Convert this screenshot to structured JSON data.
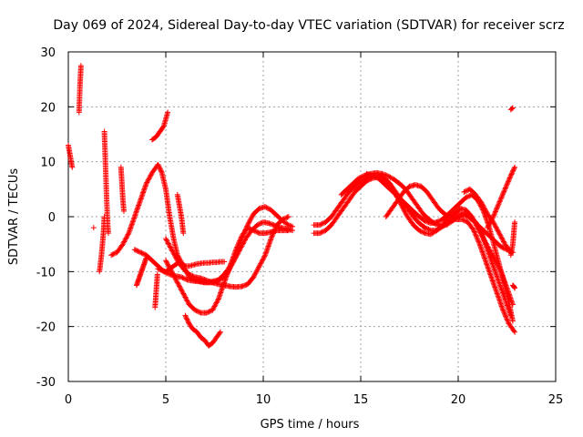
{
  "chart_data": {
    "type": "scatter",
    "title": "Day 069 of 2024, Sidereal Day-to-day VTEC variation (SDTVAR) for receiver scrz",
    "xlabel": "GPS time / hours",
    "ylabel": "SDTVAR / TECUs",
    "xlim": [
      0,
      25
    ],
    "ylim": [
      -30,
      30
    ],
    "xticks": [
      0,
      5,
      10,
      15,
      20,
      25
    ],
    "yticks": [
      -30,
      -20,
      -10,
      0,
      10,
      20,
      30
    ],
    "xtick_labels": [
      "0",
      "5",
      "10",
      "15",
      "20",
      "25"
    ],
    "ytick_labels": [
      "-30",
      "-20",
      "-10",
      "0",
      "10",
      "20",
      "30"
    ],
    "grid": true,
    "marker": "+",
    "color": "#ff0000",
    "series": [
      {
        "name": "s1",
        "x": [
          0.0,
          0.1,
          0.2
        ],
        "y": [
          13,
          11,
          9
        ]
      },
      {
        "name": "s2",
        "x": [
          0.55,
          0.6,
          0.65
        ],
        "y": [
          19,
          24,
          27.5
        ]
      },
      {
        "name": "s3",
        "x": [
          1.3
        ],
        "y": [
          -2
        ]
      },
      {
        "name": "s4",
        "x": [
          1.6,
          1.7,
          1.8,
          1.85
        ],
        "y": [
          -10,
          -7,
          -3,
          0
        ]
      },
      {
        "name": "s5",
        "x": [
          1.85,
          1.9,
          1.95,
          2.0,
          2.05
        ],
        "y": [
          15.5,
          10,
          5,
          0,
          -3
        ]
      },
      {
        "name": "s6",
        "x": [
          2.7,
          2.75,
          2.8,
          2.85
        ],
        "y": [
          9,
          6,
          3,
          1
        ]
      },
      {
        "name": "s7",
        "x": [
          2.2,
          2.5,
          2.8,
          3.1,
          3.4,
          3.7,
          4.0,
          4.3,
          4.6,
          4.8,
          5.0,
          5.2,
          5.4,
          5.6,
          5.9,
          6.2,
          6.5,
          6.8,
          7.1,
          7.4,
          7.7,
          8.0,
          8.3,
          8.6,
          8.9,
          9.2,
          9.5,
          9.8,
          10.1,
          10.4,
          10.7,
          11.0,
          11.3,
          11.5
        ],
        "y": [
          -7,
          -6.5,
          -5,
          -3,
          0,
          3,
          6,
          8,
          9.5,
          8,
          5,
          0,
          -4,
          -7,
          -9,
          -11,
          -11.5,
          -11.8,
          -11.9,
          -11.8,
          -11.5,
          -10.5,
          -9,
          -7,
          -4,
          -1.5,
          0.5,
          1.5,
          1.8,
          1.2,
          0.2,
          -0.8,
          -1.5,
          -1.8
        ]
      },
      {
        "name": "s8",
        "x": [
          3.4,
          3.7,
          4.0,
          4.3,
          4.6,
          4.9,
          5.2,
          5.5,
          5.8,
          6.1,
          6.4,
          6.7,
          7.0,
          7.3,
          7.6,
          7.9,
          8.2,
          8.5,
          8.8,
          9.1,
          9.4,
          9.7,
          10.0,
          10.3,
          10.6,
          10.9,
          11.2,
          11.5
        ],
        "y": [
          -6,
          -6.5,
          -7,
          -8,
          -9,
          -10,
          -10.5,
          -10.8,
          -11,
          -11.5,
          -11.7,
          -11.8,
          -12,
          -12,
          -11.8,
          -11.2,
          -10,
          -8,
          -6,
          -4,
          -2.5,
          -1.5,
          -1,
          -1.2,
          -1.6,
          -2,
          -2.2,
          -2.5
        ]
      },
      {
        "name": "s9",
        "x": [
          4.6,
          4.8,
          5.0,
          5.2,
          5.4,
          5.6,
          5.8,
          6.0,
          6.2,
          6.4,
          6.6,
          6.8,
          7.0,
          7.2,
          7.4,
          7.6,
          7.8,
          8.0
        ],
        "y": [
          -9.5,
          -9.8,
          -10,
          -9.5,
          -9,
          -8.5,
          -8.5,
          -9,
          -9,
          -8.8,
          -8.6,
          -8.5,
          -8.4,
          -8.4,
          -8.3,
          -8.3,
          -8.2,
          -8.2
        ]
      },
      {
        "name": "s10",
        "x": [
          4.3,
          4.5,
          4.7,
          4.9,
          5.1
        ],
        "y": [
          14,
          14.5,
          15.5,
          16.5,
          19
        ]
      },
      {
        "name": "s11",
        "x": [
          5.0,
          5.3,
          5.6,
          5.9,
          6.2,
          6.5,
          6.8,
          7.1,
          7.4,
          7.7,
          8.0,
          8.3,
          8.6,
          8.9,
          9.2,
          9.5,
          9.8,
          10.1,
          10.4,
          10.7,
          11.0,
          11.3
        ],
        "y": [
          -8,
          -10,
          -12,
          -14,
          -16,
          -17,
          -17.5,
          -17.5,
          -17,
          -15,
          -12,
          -9,
          -6,
          -3.5,
          -2,
          -2.5,
          -3,
          -3,
          -2.8,
          -2.5,
          -2.5,
          -2.5
        ]
      },
      {
        "name": "s12",
        "x": [
          5.0,
          5.3,
          5.6,
          5.9,
          6.2,
          6.5,
          6.8,
          7.1,
          7.4,
          7.7,
          8.0,
          8.3,
          8.6,
          8.9,
          9.2,
          9.5,
          9.8,
          10.1,
          10.4,
          10.7,
          11.0,
          11.3
        ],
        "y": [
          -4,
          -6,
          -8,
          -9.5,
          -10.5,
          -11,
          -11.2,
          -11.6,
          -12,
          -12.3,
          -12.5,
          -12.7,
          -12.8,
          -12.7,
          -12.3,
          -11,
          -9,
          -7,
          -4,
          -1.5,
          -0.5,
          0
        ]
      },
      {
        "name": "s13",
        "x": [
          5.6,
          5.7,
          5.8,
          5.9
        ],
        "y": [
          4,
          2,
          0,
          -3
        ]
      },
      {
        "name": "s14",
        "x": [
          6.0,
          6.2,
          6.4,
          6.6,
          6.8,
          7.0,
          7.2,
          7.4,
          7.6,
          7.8
        ],
        "y": [
          -18,
          -19.5,
          -20.5,
          -21,
          -22,
          -22.5,
          -23.5,
          -23,
          -22,
          -21
        ]
      },
      {
        "name": "s15",
        "x": [
          3.5,
          3.6,
          3.7,
          3.8,
          3.9,
          4.0
        ],
        "y": [
          -12.5,
          -11.5,
          -10.5,
          -9.5,
          -8.5,
          -7.5
        ]
      },
      {
        "name": "s16",
        "x": [
          4.45,
          4.48,
          4.51,
          4.54,
          4.57
        ],
        "y": [
          -16.5,
          -15,
          -13.5,
          -12,
          -10.5
        ]
      },
      {
        "name": "s17",
        "x": [
          12.6,
          12.9,
          13.2,
          13.5,
          13.8,
          14.1,
          14.4,
          14.7,
          15.0,
          15.3,
          15.6,
          15.9,
          16.2,
          16.5,
          16.8,
          17.1,
          17.4,
          17.7,
          18.0,
          18.3,
          18.6,
          18.9,
          19.2,
          19.5,
          19.8,
          20.1,
          20.4,
          20.7,
          21.0,
          21.3,
          21.6,
          21.9,
          22.2,
          22.5,
          22.8
        ],
        "y": [
          -1.5,
          -1.5,
          -1,
          0,
          1.5,
          3,
          4.5,
          5.5,
          6.5,
          7,
          7.5,
          7.5,
          7,
          6,
          4.5,
          3,
          1.5,
          0,
          -1.2,
          -2,
          -2.5,
          -2.5,
          -1.8,
          -1,
          -0.2,
          0.5,
          0.2,
          -0.5,
          -1.5,
          -2.5,
          -3.5,
          -4.5,
          -5.5,
          -6,
          -6.5
        ]
      },
      {
        "name": "s18",
        "x": [
          12.6,
          12.9,
          13.2,
          13.5,
          13.8,
          14.1,
          14.4,
          14.7,
          15.0,
          15.3,
          15.6,
          15.9,
          16.2,
          16.5,
          16.8,
          17.1,
          17.4,
          17.7,
          18.0,
          18.3,
          18.6,
          18.9,
          19.2,
          19.5,
          19.8,
          20.1,
          20.4,
          20.7,
          21.0,
          21.3,
          21.6,
          21.9,
          22.2,
          22.5,
          22.8
        ],
        "y": [
          -3,
          -3,
          -2.5,
          -1.5,
          0,
          1.5,
          3,
          4.5,
          5.5,
          6.5,
          7,
          7.2,
          7,
          6,
          4,
          2,
          0,
          -1.5,
          -2.5,
          -3,
          -3.2,
          -2.5,
          -1.5,
          -0.5,
          0.5,
          1.5,
          1.2,
          0,
          -2,
          -4,
          -6,
          -8,
          -10,
          -13,
          -16
        ]
      },
      {
        "name": "s19",
        "x": [
          14.0,
          14.3,
          14.6,
          14.9,
          15.2,
          15.5,
          15.8,
          16.1,
          16.4,
          16.7,
          17.0,
          17.3,
          17.6,
          17.9,
          18.2,
          18.5,
          18.8,
          19.1,
          19.4,
          19.7,
          20.0,
          20.3,
          20.6,
          20.9,
          21.2,
          21.5,
          21.8,
          22.1,
          22.4,
          22.7
        ],
        "y": [
          4,
          5,
          6,
          7,
          7.5,
          7.8,
          8,
          7.8,
          7.4,
          6.8,
          6,
          5,
          3.5,
          2,
          0.5,
          -0.5,
          -1.3,
          -1.7,
          -1.5,
          -0.8,
          0,
          0.5,
          0,
          -1,
          -3,
          -6,
          -9,
          -12,
          -15,
          -18
        ]
      },
      {
        "name": "s20",
        "x": [
          15.3,
          15.6,
          15.9,
          16.2,
          16.5,
          16.8,
          17.1,
          17.4,
          17.7,
          18.0,
          18.3,
          18.6,
          18.9,
          19.2,
          19.5,
          19.8,
          20.1,
          20.4,
          20.7,
          21.0,
          21.3,
          21.6,
          21.9,
          22.2,
          22.5,
          22.8
        ],
        "y": [
          7.8,
          7.5,
          7,
          6,
          5,
          4,
          3,
          2,
          1,
          0,
          -0.8,
          -1.2,
          -1,
          -0.5,
          0.5,
          1.5,
          2.5,
          3.5,
          4,
          3,
          1,
          -2,
          -6,
          -10,
          -14,
          -19
        ]
      },
      {
        "name": "s21",
        "x": [
          16.3,
          16.6,
          16.9,
          17.2,
          17.5,
          17.8,
          18.1,
          18.4,
          18.7,
          19.0,
          19.3,
          19.6,
          19.9,
          20.2,
          20.5,
          20.8,
          21.1,
          21.4,
          21.7,
          22.0,
          22.3,
          22.6,
          22.9
        ],
        "y": [
          0,
          1.5,
          3,
          4.5,
          5.5,
          5.8,
          5.5,
          4.5,
          3,
          1.5,
          0.5,
          -0.2,
          -0.5,
          -0.5,
          -1,
          -2.5,
          -5,
          -8,
          -11,
          -14,
          -17,
          -19.5,
          -21
        ]
      },
      {
        "name": "s22",
        "x": [
          20.3,
          20.6,
          20.9,
          21.2,
          21.5,
          21.8,
          22.1,
          22.4,
          22.7
        ],
        "y": [
          4.5,
          5,
          4,
          2.5,
          0.5,
          -1,
          -3,
          -5,
          -6.5
        ]
      },
      {
        "name": "s23",
        "x": [
          21.5,
          21.8,
          22.1,
          22.4,
          22.7,
          22.9
        ],
        "y": [
          -2,
          0,
          2.5,
          5,
          7.5,
          9
        ]
      },
      {
        "name": "s24",
        "x": [
          22.8,
          22.85,
          22.9
        ],
        "y": [
          -12.5,
          -12.7,
          -13
        ]
      },
      {
        "name": "s25",
        "x": [
          22.7,
          22.8
        ],
        "y": [
          19.5,
          19.8
        ]
      },
      {
        "name": "s26",
        "x": [
          22.7,
          22.8,
          22.9
        ],
        "y": [
          -7,
          -5,
          -1
        ]
      }
    ]
  }
}
